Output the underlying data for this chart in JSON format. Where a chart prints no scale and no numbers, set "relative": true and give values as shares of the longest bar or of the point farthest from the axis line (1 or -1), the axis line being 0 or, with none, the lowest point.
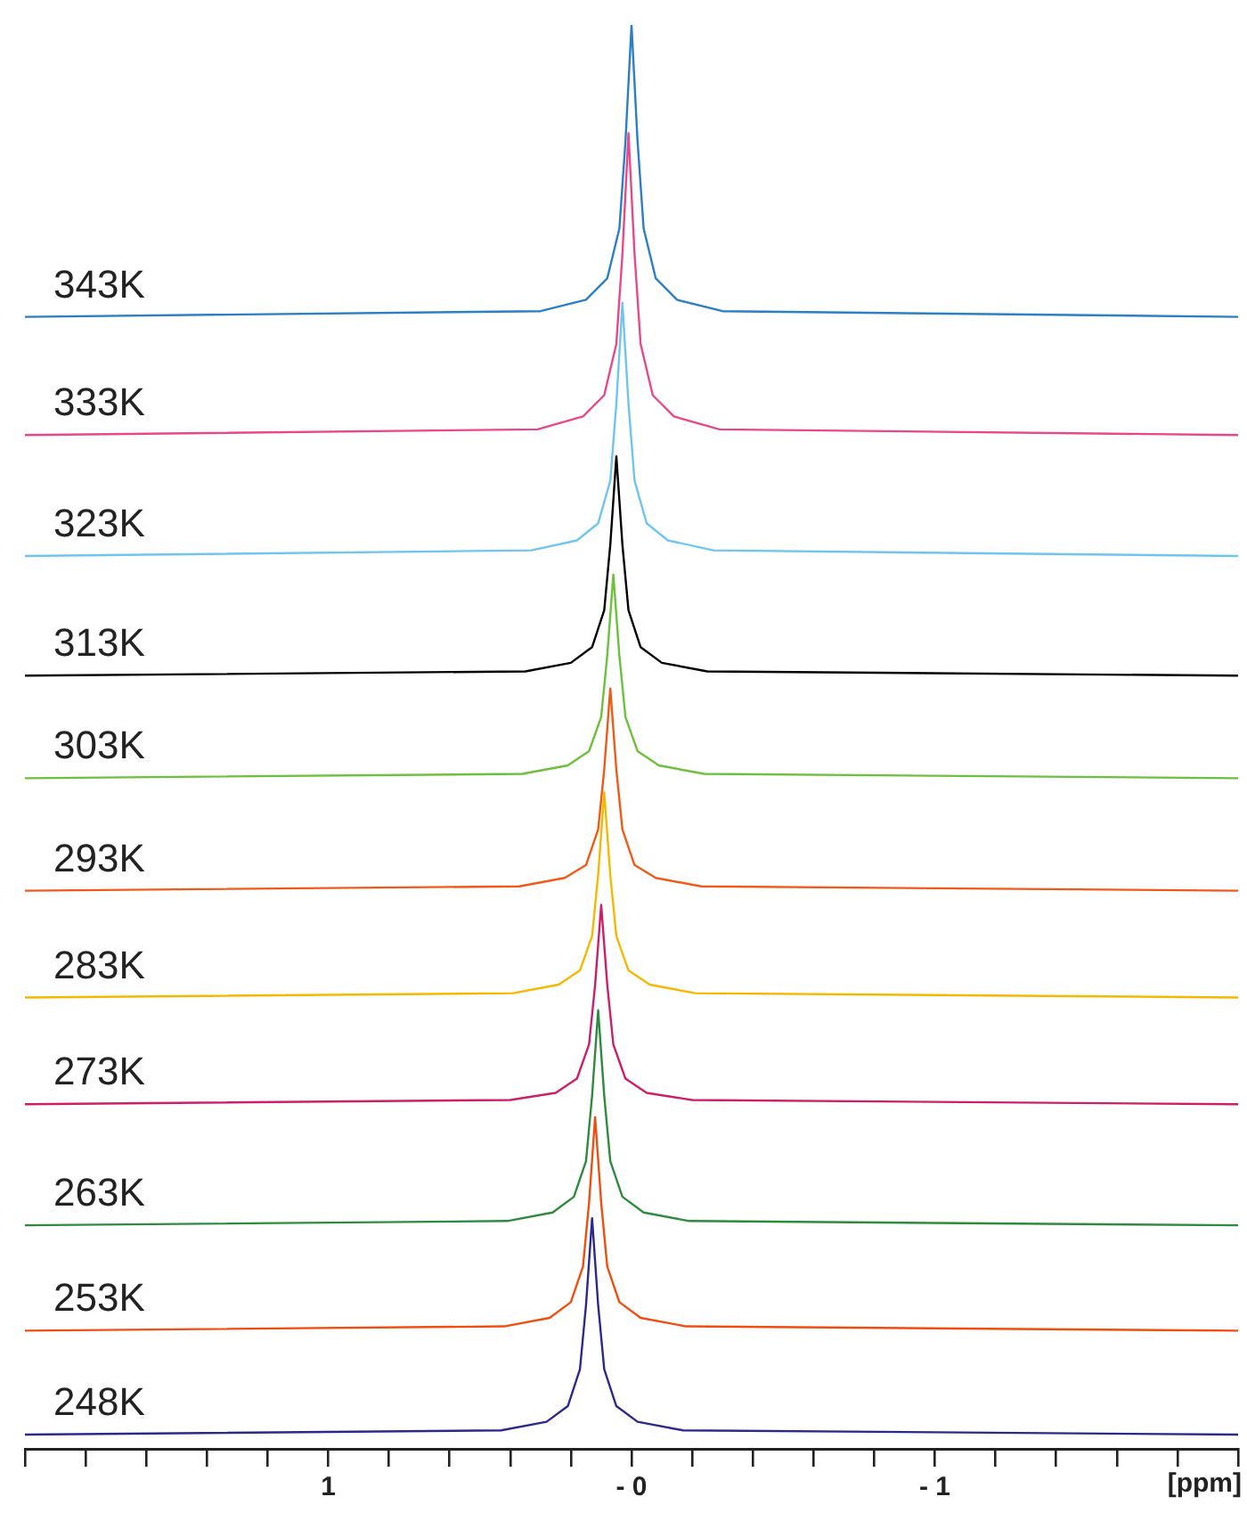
{
  "chart_data": {
    "type": "line",
    "relative": true,
    "xlabel": "[ppm]",
    "xlim": [
      2,
      -2
    ],
    "xticks": [
      {
        "value": 2,
        "label": null
      },
      {
        "value": 1.8,
        "label": null
      },
      {
        "value": 1.6,
        "label": null
      },
      {
        "value": 1.4,
        "label": null
      },
      {
        "value": 1.2,
        "label": null
      },
      {
        "value": 1,
        "label": "1"
      },
      {
        "value": 0.8,
        "label": null
      },
      {
        "value": 0.6,
        "label": null
      },
      {
        "value": 0.4,
        "label": null
      },
      {
        "value": 0.2,
        "label": null
      },
      {
        "value": 0,
        "label": "- 0"
      },
      {
        "value": -0.2,
        "label": null
      },
      {
        "value": -0.4,
        "label": null
      },
      {
        "value": -0.6,
        "label": null
      },
      {
        "value": -0.8,
        "label": null
      },
      {
        "value": -1,
        "label": "- 1"
      },
      {
        "value": -1.2,
        "label": null
      },
      {
        "value": -1.4,
        "label": null
      },
      {
        "value": -1.6,
        "label": null
      },
      {
        "value": -1.8,
        "label": null
      },
      {
        "value": -2,
        "label": null
      }
    ],
    "grid": false,
    "legend": false,
    "marker": "none",
    "line_style": "solid",
    "series": [
      {
        "name": "343K",
        "color": "#2a7fc6",
        "x": [
          2,
          0.3,
          0.15,
          0.08,
          0.04,
          0.02,
          0,
          -0.02,
          -0.04,
          -0.08,
          -0.15,
          -0.3,
          -2
        ],
        "values": [
          0.795,
          0.799,
          0.807,
          0.822,
          0.857,
          0.918,
          1.0,
          0.918,
          0.857,
          0.822,
          0.807,
          0.799,
          0.795
        ]
      },
      {
        "name": "333K",
        "color": "#e8488a",
        "x": [
          2,
          0.31,
          0.16,
          0.09,
          0.05,
          0.03,
          0.01,
          -0.01,
          -0.03,
          -0.07,
          -0.14,
          -0.29,
          -2
        ],
        "values": [
          0.712,
          0.716,
          0.725,
          0.74,
          0.776,
          0.839,
          0.924,
          0.839,
          0.776,
          0.74,
          0.725,
          0.716,
          0.712
        ]
      },
      {
        "name": "323K",
        "color": "#6ec6f0",
        "x": [
          2,
          0.33,
          0.18,
          0.11,
          0.07,
          0.05,
          0.03,
          0.01,
          -0.01,
          -0.05,
          -0.12,
          -0.27,
          -2
        ],
        "values": [
          0.627,
          0.631,
          0.638,
          0.65,
          0.68,
          0.734,
          0.805,
          0.734,
          0.68,
          0.65,
          0.638,
          0.631,
          0.627
        ]
      },
      {
        "name": "313K",
        "color": "#000000",
        "x": [
          2,
          0.35,
          0.2,
          0.13,
          0.09,
          0.07,
          0.05,
          0.03,
          0.01,
          -0.03,
          -0.1,
          -0.25,
          -2
        ],
        "values": [
          0.543,
          0.546,
          0.552,
          0.563,
          0.589,
          0.635,
          0.697,
          0.635,
          0.589,
          0.563,
          0.552,
          0.546,
          0.543
        ]
      },
      {
        "name": "303K",
        "color": "#6cc03a",
        "x": [
          2,
          0.36,
          0.21,
          0.14,
          0.1,
          0.08,
          0.06,
          0.04,
          0.02,
          -0.02,
          -0.09,
          -0.24,
          -2
        ],
        "values": [
          0.471,
          0.474,
          0.48,
          0.49,
          0.514,
          0.557,
          0.614,
          0.557,
          0.514,
          0.49,
          0.48,
          0.474,
          0.471
        ]
      },
      {
        "name": "293K",
        "color": "#f05a16",
        "x": [
          2,
          0.37,
          0.22,
          0.15,
          0.11,
          0.09,
          0.07,
          0.05,
          0.03,
          -0.01,
          -0.08,
          -0.23,
          -2
        ],
        "values": [
          0.392,
          0.395,
          0.401,
          0.41,
          0.435,
          0.477,
          0.534,
          0.477,
          0.435,
          0.41,
          0.401,
          0.395,
          0.392
        ]
      },
      {
        "name": "283K",
        "color": "#f5b800",
        "x": [
          2,
          0.39,
          0.24,
          0.17,
          0.13,
          0.11,
          0.09,
          0.07,
          0.05,
          0.01,
          -0.06,
          -0.21,
          -2
        ],
        "values": [
          0.317,
          0.32,
          0.326,
          0.336,
          0.36,
          0.403,
          0.461,
          0.403,
          0.36,
          0.336,
          0.326,
          0.32,
          0.317
        ]
      },
      {
        "name": "273K",
        "color": "#cc1f6a",
        "x": [
          2,
          0.4,
          0.25,
          0.18,
          0.14,
          0.12,
          0.1,
          0.08,
          0.06,
          0.02,
          -0.05,
          -0.2,
          -2
        ],
        "values": [
          0.242,
          0.245,
          0.25,
          0.26,
          0.284,
          0.326,
          0.382,
          0.326,
          0.284,
          0.26,
          0.25,
          0.245,
          0.242
        ]
      },
      {
        "name": "263K",
        "color": "#2e8b3e",
        "x": [
          2,
          0.41,
          0.26,
          0.19,
          0.15,
          0.13,
          0.11,
          0.09,
          0.07,
          0.03,
          -0.04,
          -0.19,
          -2
        ],
        "values": [
          0.157,
          0.16,
          0.166,
          0.177,
          0.202,
          0.248,
          0.308,
          0.248,
          0.202,
          0.177,
          0.166,
          0.16,
          0.157
        ]
      },
      {
        "name": "253K",
        "color": "#f04e0e",
        "x": [
          2,
          0.42,
          0.27,
          0.2,
          0.16,
          0.14,
          0.12,
          0.1,
          0.08,
          0.04,
          -0.03,
          -0.18,
          -2
        ],
        "values": [
          0.083,
          0.086,
          0.092,
          0.103,
          0.128,
          0.173,
          0.233,
          0.173,
          0.128,
          0.103,
          0.092,
          0.086,
          0.083
        ]
      },
      {
        "name": "248K",
        "color": "#2b2a8c",
        "x": [
          2,
          0.43,
          0.28,
          0.21,
          0.17,
          0.15,
          0.13,
          0.11,
          0.09,
          0.05,
          -0.02,
          -0.17,
          -2
        ],
        "values": [
          0.01,
          0.013,
          0.019,
          0.03,
          0.056,
          0.101,
          0.162,
          0.101,
          0.056,
          0.03,
          0.019,
          0.013,
          0.01
        ]
      }
    ]
  }
}
